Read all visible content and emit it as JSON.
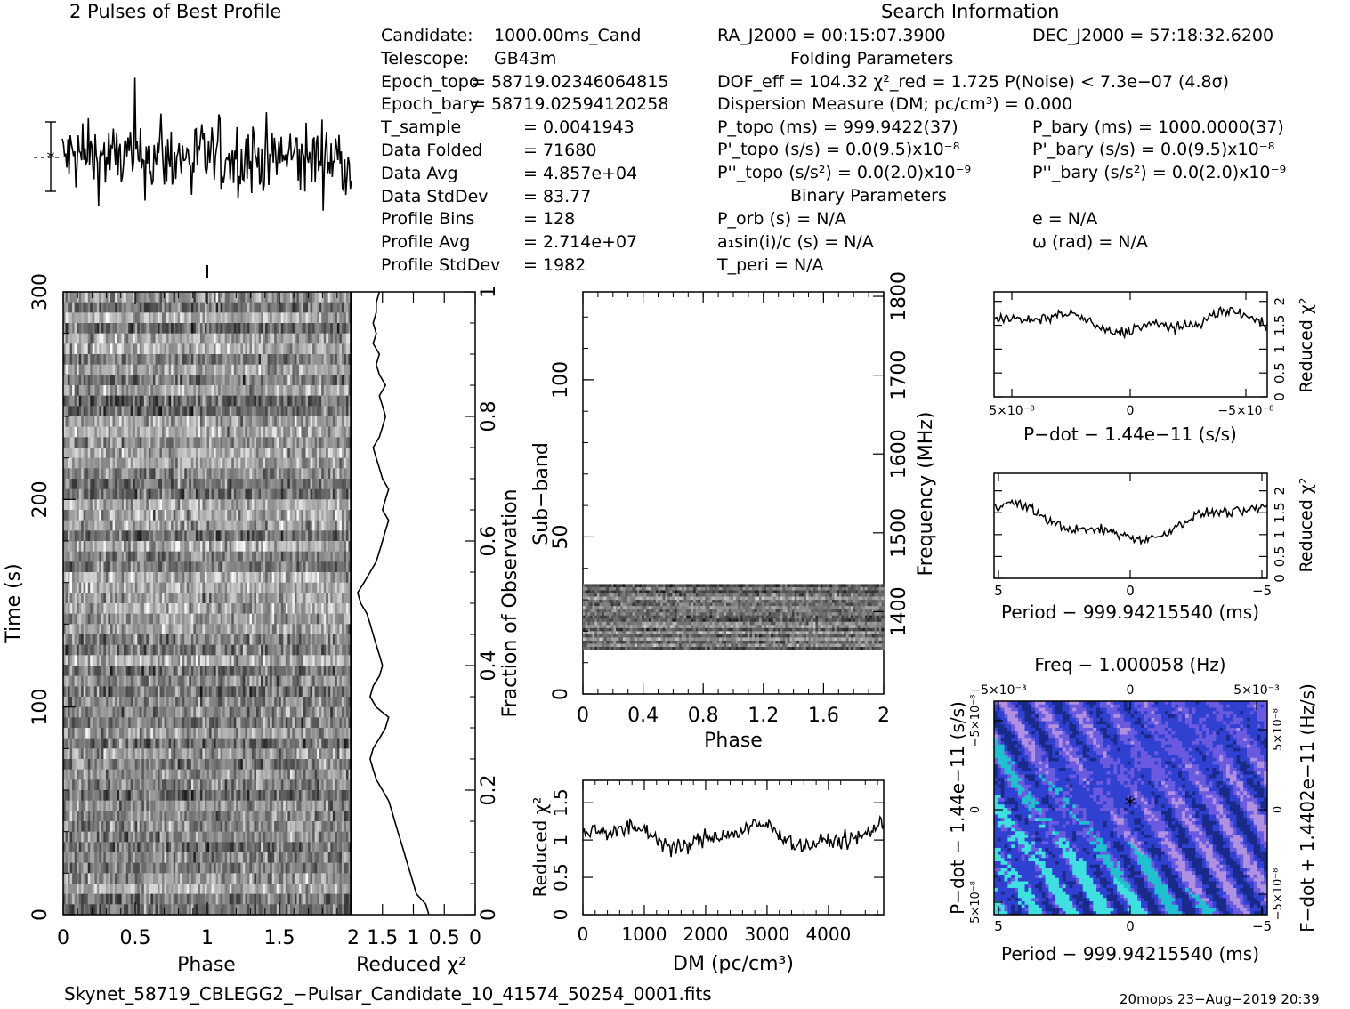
{
  "header": {
    "profile_title": "2 Pulses of Best Profile",
    "search_title": "Search Information",
    "folding_title": "Folding Parameters",
    "binary_title": "Binary Parameters"
  },
  "info_left": [
    {
      "label": "Candidate:",
      "value": "1000.00ms_Cand"
    },
    {
      "label": "Telescope:",
      "value": "GB43m"
    },
    {
      "label": "Epoch_topo",
      "value": "= 58719.02346064815"
    },
    {
      "label": "Epoch_bary",
      "value": "= 58719.02594120258"
    },
    {
      "label": "T_sample",
      "value": "=   0.0041943"
    },
    {
      "label": "Data Folded",
      "value": "=   71680"
    },
    {
      "label": "Data Avg",
      "value": "=   4.857e+04"
    },
    {
      "label": "Data StdDev",
      "value": "=   83.77"
    },
    {
      "label": "Profile Bins",
      "value": "=   128"
    },
    {
      "label": "Profile Avg",
      "value": "=   2.714e+07"
    },
    {
      "label": "Profile StdDev",
      "value": "=   1982"
    }
  ],
  "search": {
    "ra": "RA_J2000 = 00:15:07.3900",
    "dec": "DEC_J2000 = 57:18:32.6200"
  },
  "folding": {
    "dof_line": "DOF_eff = 104.32  χ²_red = 1.725   P(Noise) < 7.3e−07   (4.8σ)",
    "dm_line": "Dispersion Measure (DM; pc/cm³) = 0.000",
    "p_topo": "P_topo (ms) =  999.9422(37)",
    "p_bary": "P_bary (ms) =  1000.0000(37)",
    "pd_topo": "P'_topo (s/s) = 0.0(9.5)x10⁻⁸",
    "pd_bary": "P'_bary (s/s) = 0.0(9.5)x10⁻⁸",
    "pdd_topo": "P''_topo (s/s²) = 0.0(2.0)x10⁻⁹",
    "pdd_bary": "P''_bary (s/s²) = 0.0(2.0)x10⁻⁹"
  },
  "binary": {
    "porb": "P_orb (s) = N/A",
    "asini": "a₁sin(i)/c (s) = N/A",
    "tperi": "T_peri = N/A",
    "e": "e = N/A",
    "omega": "ω (rad) = N/A"
  },
  "footer": {
    "filename": "Skynet_58719_CBLEGG2_−Pulsar_Candidate_10_41574_50254_0001.fits",
    "stamp": "20mops 23−Aug−2019 20:39"
  },
  "chart_data": [
    {
      "id": "profile",
      "type": "line",
      "title": "2 Pulses of Best Profile",
      "x_range": [
        0,
        2
      ],
      "points": 256,
      "description_axes": "no tick labels shown"
    },
    {
      "id": "time_phase",
      "type": "heatmap",
      "xlabel": "Phase",
      "ylabel": "Time (s)",
      "xlim": [
        0,
        2
      ],
      "ylim": [
        0,
        300
      ],
      "x_ticks": [
        "0",
        "0.5",
        "1",
        "1.5"
      ],
      "y_ticks": [
        "0",
        "100",
        "200",
        "300"
      ]
    },
    {
      "id": "time_chi2",
      "type": "line",
      "xlabel": "Reduced χ²",
      "ylabel": "Fraction of Observation",
      "xlim": [
        2.0,
        0.0
      ],
      "ylim": [
        0,
        1
      ],
      "x_ticks": [
        "2",
        "1.5",
        "1",
        "0.5",
        "0"
      ],
      "y_ticks": [
        "0",
        "0.2",
        "0.4",
        "0.6",
        "0.8",
        "1"
      ],
      "x": [
        0.75,
        0.8,
        0.95,
        1.0,
        1.05,
        1.1,
        1.15,
        1.2,
        1.25,
        1.3,
        1.35,
        1.4,
        1.5,
        1.6,
        1.65,
        1.7,
        1.65,
        1.55,
        1.45,
        1.4,
        1.6,
        1.7,
        1.65,
        1.55,
        1.5,
        1.55,
        1.6,
        1.65,
        1.7,
        1.75,
        1.85,
        1.9,
        1.8,
        1.7,
        1.6,
        1.55,
        1.5,
        1.45,
        1.4,
        1.5,
        1.45,
        1.4,
        1.5,
        1.55,
        1.6,
        1.65,
        1.55,
        1.5,
        1.45,
        1.5,
        1.55,
        1.45,
        1.55,
        1.6,
        1.55,
        1.65,
        1.6,
        1.65,
        1.6,
        1.6,
        1.55
      ],
      "y": [
        0.0,
        0.017,
        0.033,
        0.05,
        0.067,
        0.083,
        0.1,
        0.117,
        0.133,
        0.15,
        0.167,
        0.183,
        0.2,
        0.217,
        0.233,
        0.25,
        0.267,
        0.283,
        0.3,
        0.317,
        0.333,
        0.35,
        0.367,
        0.383,
        0.4,
        0.417,
        0.433,
        0.45,
        0.467,
        0.483,
        0.5,
        0.517,
        0.533,
        0.55,
        0.567,
        0.583,
        0.6,
        0.617,
        0.633,
        0.65,
        0.667,
        0.683,
        0.7,
        0.717,
        0.733,
        0.75,
        0.767,
        0.783,
        0.8,
        0.817,
        0.833,
        0.85,
        0.867,
        0.883,
        0.9,
        0.917,
        0.933,
        0.95,
        0.967,
        0.983,
        1.0
      ]
    },
    {
      "id": "subband_phase",
      "type": "heatmap",
      "xlabel": "Phase",
      "ylabel": "Sub−band",
      "y2label": "Frequency (MHz)",
      "xlim": [
        0,
        2
      ],
      "ylim": [
        0,
        128
      ],
      "y2lim": [
        1300,
        1800
      ],
      "x_ticks": [
        "0",
        "0.4",
        "0.8",
        "1.2",
        "1.6",
        "2"
      ],
      "y_ticks": [
        "0",
        "50",
        "100"
      ],
      "y2_ticks": [
        "1400",
        "1500",
        "1600",
        "1700",
        "1800"
      ],
      "band_range": [
        14,
        35
      ]
    },
    {
      "id": "dm_chi2",
      "type": "line",
      "xlabel": "DM (pc/cm³)",
      "ylabel": "Reduced χ²",
      "xlim": [
        0,
        4900
      ],
      "ylim": [
        0,
        1.8
      ],
      "x_ticks": [
        "0",
        "1000",
        "2000",
        "3000",
        "4000"
      ],
      "y_ticks": [
        "0",
        "0.5",
        "1",
        "1.5"
      ],
      "points": 250,
      "mean": 1.05
    },
    {
      "id": "pdot_chi2",
      "type": "line",
      "xlabel": "P−dot − 1.44e−11 (s/s)",
      "ylabel": "Reduced χ²",
      "xlim": [
        7.5e-08,
        -7.5e-08
      ],
      "ylim": [
        0,
        2.2
      ],
      "x_ticks": [
        "5×10⁻⁸",
        "0",
        "−5×10⁻⁸"
      ],
      "y_ticks": [
        "0",
        "0.5",
        "1",
        "1.5",
        "2"
      ],
      "points": 200,
      "mean": 1.55
    },
    {
      "id": "period_chi2",
      "type": "line",
      "xlabel": "Period − 999.94215540 (ms)",
      "ylabel": "Reduced χ²",
      "xlim": [
        5,
        -5
      ],
      "ylim": [
        0,
        2.4
      ],
      "x_ticks": [
        "5",
        "0",
        "−5"
      ],
      "y_ticks": [
        "0",
        "0.5",
        "1",
        "1.5",
        "2"
      ],
      "points": 200,
      "mean": 1.3
    },
    {
      "id": "ppdot",
      "type": "heatmap",
      "title": "Freq − 1.000058 (Hz)",
      "xlabel": "Period − 999.94215540 (ms)",
      "ylabel": "P−dot − 1.44e−11 (s/s)",
      "y2label": "F−dot + 1.4402e−11 (Hz/s)",
      "xlim": [
        5,
        -5
      ],
      "x_ticks": [
        "5",
        "0",
        "−5"
      ],
      "x2_ticks": [
        "−5×10⁻³",
        "0",
        "5×10⁻³"
      ],
      "y_ticks": [
        "5×10⁻⁸",
        "0",
        "−5×10⁻⁸"
      ],
      "y2_ticks": [
        "−5×10⁻⁸",
        "0",
        "5×10⁻⁸"
      ],
      "colors": [
        "#1a2a8a",
        "#3040d0",
        "#6a5ae0",
        "#b090e0",
        "#20c0d0",
        "#40e0e0"
      ]
    }
  ]
}
